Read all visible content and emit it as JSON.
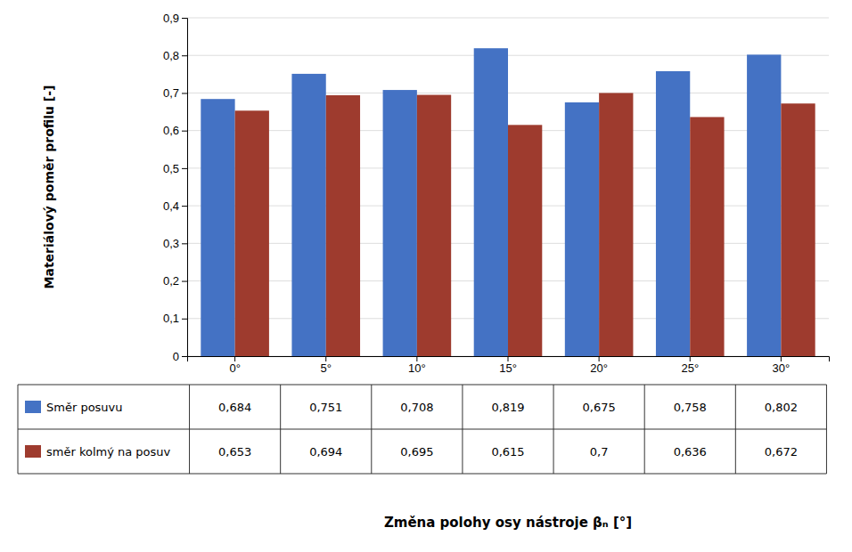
{
  "chart_data": {
    "type": "bar",
    "categories": [
      "0°",
      "5°",
      "10°",
      "15°",
      "20°",
      "25°",
      "30°"
    ],
    "series": [
      {
        "name": "Směr posuvu",
        "color": "#4472C4",
        "values": [
          0.684,
          0.751,
          0.708,
          0.819,
          0.675,
          0.758,
          0.802
        ],
        "value_labels": [
          "0,684",
          "0,751",
          "0,708",
          "0,819",
          "0,675",
          "0,758",
          "0,802"
        ]
      },
      {
        "name": "směr kolmý na posuv",
        "color": "#9E3B2E",
        "values": [
          0.653,
          0.694,
          0.695,
          0.615,
          0.7,
          0.636,
          0.672
        ],
        "value_labels": [
          "0,653",
          "0,694",
          "0,695",
          "0,615",
          "0,7",
          "0,636",
          "0,672"
        ]
      }
    ],
    "ylabel": "Materiálový poměr profilu [-]",
    "xlabel": "Změna polohy osy nástroje βₙ [°]",
    "ylim": [
      0,
      0.9
    ],
    "yticks": [
      0,
      {
        "value": 0.1,
        "label": "0,1"
      },
      {
        "value": 0.2,
        "label": "0,2"
      },
      {
        "value": 0.3,
        "label": "0,3"
      },
      {
        "value": 0.4,
        "label": "0,4"
      },
      {
        "value": 0.5,
        "label": "0,5"
      },
      {
        "value": 0.6,
        "label": "0,6"
      },
      {
        "value": 0.7,
        "label": "0,7"
      },
      {
        "value": 0.8,
        "label": "0,8"
      },
      {
        "value": 0.9,
        "label": "0,9"
      }
    ],
    "grid": true
  }
}
